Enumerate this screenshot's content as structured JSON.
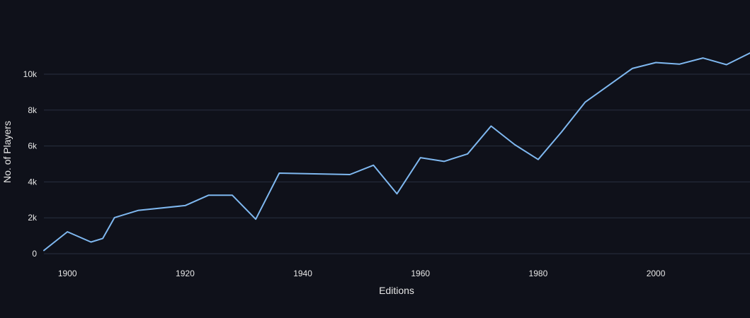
{
  "chart_data": {
    "type": "line",
    "title": "",
    "xlabel": "Editions",
    "ylabel": "No. of Players",
    "xlim": [
      1896,
      2016
    ],
    "ylim": [
      0,
      12000
    ],
    "grid": true,
    "x_ticks": [
      1900,
      1920,
      1940,
      1960,
      1980,
      2000
    ],
    "x_tick_labels": [
      "1900",
      "1920",
      "1940",
      "1960",
      "1980",
      "2000"
    ],
    "y_ticks": [
      0,
      2000,
      4000,
      6000,
      8000,
      10000
    ],
    "y_tick_labels": [
      "0",
      "2k",
      "4k",
      "6k",
      "8k",
      "10k"
    ],
    "line_color": "#7fb8f0",
    "background_color": "#0f111a",
    "series": [
      {
        "x": [
          1896,
          1900,
          1904,
          1906,
          1908,
          1912,
          1920,
          1924,
          1928,
          1932,
          1936,
          1948,
          1952,
          1956,
          1960,
          1964,
          1968,
          1972,
          1976,
          1980,
          1984,
          1988,
          1992,
          1996,
          2000,
          2004,
          2008,
          2012,
          2016
        ],
        "values": [
          180,
          1220,
          650,
          850,
          2010,
          2410,
          2680,
          3260,
          3260,
          1920,
          4490,
          4410,
          4930,
          3340,
          5350,
          5140,
          5560,
          7110,
          6080,
          5250,
          6790,
          8450,
          9380,
          10320,
          10650,
          10560,
          10900,
          10530,
          11180
        ]
      }
    ]
  }
}
